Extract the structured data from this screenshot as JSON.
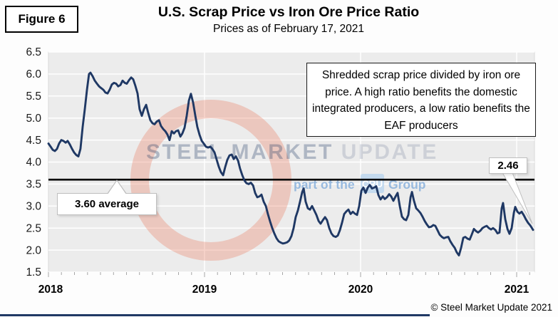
{
  "figure_label": "Figure 6",
  "title": "U.S. Scrap Price vs Iron Ore Price Ratio",
  "subtitle": "Prices as of February 17, 2021",
  "annotation": "Shredded scrap price divided by iron ore price. A high ratio benefits the domestic integrated producers, a low ratio benefits the EAF producers",
  "callouts": {
    "average_label": "3.60 average",
    "latest_label": "2.46"
  },
  "watermark": {
    "title_strong": "STEEL MARKET ",
    "title_light": "UPDATE",
    "tagline_prefix": "part of the",
    "tagline_box": "CRU",
    "tagline_suffix": "Group"
  },
  "copyright": "© Steel Market Update 2021",
  "colors": {
    "series": "#1f3864",
    "average_line": "#000000",
    "plot_bg": "#ececec",
    "plot_border": "#d9d9d9",
    "gridline": "#ffffff",
    "tick": "#a6a6a6",
    "axis_text": "#1a1a1a",
    "watermark_ring": "rgba(235,124,96,0.33)",
    "watermark_navy_strong": "rgba(31,56,100,0.30)",
    "watermark_navy_light": "rgba(31,56,100,0.15)",
    "watermark_blue": "rgba(130,173,219,0.80)",
    "watermark_box": "rgba(189,215,238,0.85)",
    "bottom_bar": "#1f3864",
    "callout_border": "#bfbfbf"
  },
  "chart_data": {
    "type": "line",
    "title": "U.S. Scrap Price vs Iron Ore Price Ratio",
    "subtitle": "Prices as of February 17, 2021",
    "xlabel": "",
    "ylabel": "",
    "x_ticks": [
      2018,
      2019,
      2020,
      2021
    ],
    "x_tick_labels": [
      "2018",
      "2019",
      "2020",
      "2021"
    ],
    "y_ticks": [
      6.5,
      6.0,
      5.5,
      5.0,
      4.5,
      4.0,
      3.5,
      3.0,
      2.5,
      2.0,
      1.5
    ],
    "ylim": [
      1.5,
      6.5
    ],
    "xlim": [
      2018.0,
      2021.115
    ],
    "grid": true,
    "legend": "none",
    "average": 3.6,
    "latest_value": 2.46,
    "series": [
      {
        "name": "Shredded scrap price / iron ore price ratio",
        "points": [
          [
            2018.0,
            4.42
          ],
          [
            2018.014,
            4.35
          ],
          [
            2018.027,
            4.28
          ],
          [
            2018.041,
            4.25
          ],
          [
            2018.055,
            4.3
          ],
          [
            2018.068,
            4.42
          ],
          [
            2018.082,
            4.5
          ],
          [
            2018.096,
            4.48
          ],
          [
            2018.11,
            4.44
          ],
          [
            2018.123,
            4.48
          ],
          [
            2018.137,
            4.4
          ],
          [
            2018.151,
            4.3
          ],
          [
            2018.164,
            4.22
          ],
          [
            2018.178,
            4.16
          ],
          [
            2018.192,
            4.13
          ],
          [
            2018.205,
            4.3
          ],
          [
            2018.219,
            4.8
          ],
          [
            2018.233,
            5.2
          ],
          [
            2018.247,
            5.65
          ],
          [
            2018.26,
            6.0
          ],
          [
            2018.269,
            6.03
          ],
          [
            2018.283,
            5.95
          ],
          [
            2018.297,
            5.85
          ],
          [
            2018.311,
            5.78
          ],
          [
            2018.324,
            5.72
          ],
          [
            2018.338,
            5.68
          ],
          [
            2018.352,
            5.64
          ],
          [
            2018.365,
            5.58
          ],
          [
            2018.379,
            5.56
          ],
          [
            2018.393,
            5.65
          ],
          [
            2018.406,
            5.76
          ],
          [
            2018.42,
            5.8
          ],
          [
            2018.434,
            5.78
          ],
          [
            2018.447,
            5.72
          ],
          [
            2018.461,
            5.75
          ],
          [
            2018.475,
            5.85
          ],
          [
            2018.489,
            5.8
          ],
          [
            2018.502,
            5.78
          ],
          [
            2018.516,
            5.86
          ],
          [
            2018.53,
            5.92
          ],
          [
            2018.543,
            5.88
          ],
          [
            2018.557,
            5.73
          ],
          [
            2018.571,
            5.56
          ],
          [
            2018.584,
            5.2
          ],
          [
            2018.598,
            5.05
          ],
          [
            2018.612,
            5.2
          ],
          [
            2018.626,
            5.3
          ],
          [
            2018.639,
            5.12
          ],
          [
            2018.653,
            4.95
          ],
          [
            2018.667,
            4.88
          ],
          [
            2018.68,
            4.86
          ],
          [
            2018.694,
            4.92
          ],
          [
            2018.708,
            4.95
          ],
          [
            2018.721,
            4.82
          ],
          [
            2018.735,
            4.75
          ],
          [
            2018.749,
            4.7
          ],
          [
            2018.763,
            4.62
          ],
          [
            2018.776,
            4.5
          ],
          [
            2018.79,
            4.7
          ],
          [
            2018.804,
            4.65
          ],
          [
            2018.817,
            4.7
          ],
          [
            2018.831,
            4.72
          ],
          [
            2018.845,
            4.58
          ],
          [
            2018.858,
            4.65
          ],
          [
            2018.872,
            4.78
          ],
          [
            2018.886,
            5.05
          ],
          [
            2018.9,
            5.4
          ],
          [
            2018.913,
            5.55
          ],
          [
            2018.927,
            5.35
          ],
          [
            2018.941,
            5.05
          ],
          [
            2018.954,
            4.8
          ],
          [
            2018.968,
            4.62
          ],
          [
            2018.982,
            4.48
          ],
          [
            2018.995,
            4.42
          ],
          [
            2019.009,
            4.35
          ],
          [
            2019.023,
            4.33
          ],
          [
            2019.037,
            4.35
          ],
          [
            2019.05,
            4.3
          ],
          [
            2019.064,
            4.22
          ],
          [
            2019.078,
            4.05
          ],
          [
            2019.091,
            3.9
          ],
          [
            2019.105,
            3.77
          ],
          [
            2019.119,
            3.7
          ],
          [
            2019.132,
            3.88
          ],
          [
            2019.146,
            4.05
          ],
          [
            2019.16,
            4.15
          ],
          [
            2019.174,
            4.17
          ],
          [
            2019.187,
            4.07
          ],
          [
            2019.201,
            4.13
          ],
          [
            2019.215,
            4.03
          ],
          [
            2019.228,
            3.85
          ],
          [
            2019.242,
            3.7
          ],
          [
            2019.256,
            3.58
          ],
          [
            2019.269,
            3.52
          ],
          [
            2019.283,
            3.5
          ],
          [
            2019.297,
            3.53
          ],
          [
            2019.311,
            3.47
          ],
          [
            2019.324,
            3.3
          ],
          [
            2019.338,
            3.2
          ],
          [
            2019.352,
            3.22
          ],
          [
            2019.365,
            3.26
          ],
          [
            2019.379,
            3.1
          ],
          [
            2019.393,
            3.0
          ],
          [
            2019.406,
            2.82
          ],
          [
            2019.42,
            2.65
          ],
          [
            2019.434,
            2.5
          ],
          [
            2019.447,
            2.38
          ],
          [
            2019.461,
            2.27
          ],
          [
            2019.475,
            2.2
          ],
          [
            2019.489,
            2.17
          ],
          [
            2019.502,
            2.15
          ],
          [
            2019.516,
            2.16
          ],
          [
            2019.53,
            2.18
          ],
          [
            2019.543,
            2.22
          ],
          [
            2019.557,
            2.32
          ],
          [
            2019.571,
            2.5
          ],
          [
            2019.584,
            2.75
          ],
          [
            2019.598,
            2.9
          ],
          [
            2019.612,
            3.1
          ],
          [
            2019.626,
            3.32
          ],
          [
            2019.635,
            3.4
          ],
          [
            2019.648,
            3.1
          ],
          [
            2019.662,
            2.95
          ],
          [
            2019.676,
            2.92
          ],
          [
            2019.689,
            3.0
          ],
          [
            2019.703,
            2.9
          ],
          [
            2019.717,
            2.8
          ],
          [
            2019.731,
            2.66
          ],
          [
            2019.744,
            2.6
          ],
          [
            2019.758,
            2.68
          ],
          [
            2019.772,
            2.75
          ],
          [
            2019.785,
            2.68
          ],
          [
            2019.799,
            2.5
          ],
          [
            2019.813,
            2.38
          ],
          [
            2019.826,
            2.32
          ],
          [
            2019.84,
            2.3
          ],
          [
            2019.854,
            2.33
          ],
          [
            2019.867,
            2.45
          ],
          [
            2019.881,
            2.62
          ],
          [
            2019.895,
            2.82
          ],
          [
            2019.909,
            2.88
          ],
          [
            2019.922,
            2.92
          ],
          [
            2019.936,
            2.82
          ],
          [
            2019.95,
            2.87
          ],
          [
            2019.963,
            2.83
          ],
          [
            2019.977,
            2.8
          ],
          [
            2019.991,
            3.0
          ],
          [
            2020.005,
            3.35
          ],
          [
            2020.018,
            3.42
          ],
          [
            2020.032,
            3.3
          ],
          [
            2020.046,
            3.42
          ],
          [
            2020.059,
            3.48
          ],
          [
            2020.073,
            3.4
          ],
          [
            2020.087,
            3.42
          ],
          [
            2020.1,
            3.45
          ],
          [
            2020.114,
            3.25
          ],
          [
            2020.128,
            3.15
          ],
          [
            2020.142,
            3.22
          ],
          [
            2020.155,
            3.16
          ],
          [
            2020.169,
            3.2
          ],
          [
            2020.183,
            3.27
          ],
          [
            2020.196,
            3.22
          ],
          [
            2020.21,
            3.12
          ],
          [
            2020.224,
            3.22
          ],
          [
            2020.237,
            3.3
          ],
          [
            2020.251,
            3.0
          ],
          [
            2020.265,
            2.76
          ],
          [
            2020.279,
            2.7
          ],
          [
            2020.292,
            2.68
          ],
          [
            2020.306,
            2.8
          ],
          [
            2020.32,
            3.2
          ],
          [
            2020.329,
            3.32
          ],
          [
            2020.342,
            3.12
          ],
          [
            2020.356,
            2.95
          ],
          [
            2020.37,
            2.9
          ],
          [
            2020.384,
            2.84
          ],
          [
            2020.397,
            2.76
          ],
          [
            2020.411,
            2.66
          ],
          [
            2020.425,
            2.58
          ],
          [
            2020.438,
            2.52
          ],
          [
            2020.452,
            2.53
          ],
          [
            2020.466,
            2.57
          ],
          [
            2020.479,
            2.55
          ],
          [
            2020.493,
            2.45
          ],
          [
            2020.507,
            2.35
          ],
          [
            2020.521,
            2.3
          ],
          [
            2020.534,
            2.27
          ],
          [
            2020.548,
            2.29
          ],
          [
            2020.562,
            2.3
          ],
          [
            2020.575,
            2.2
          ],
          [
            2020.589,
            2.12
          ],
          [
            2020.603,
            2.05
          ],
          [
            2020.616,
            1.95
          ],
          [
            2020.63,
            1.88
          ],
          [
            2020.644,
            2.05
          ],
          [
            2020.658,
            2.28
          ],
          [
            2020.671,
            2.3
          ],
          [
            2020.685,
            2.26
          ],
          [
            2020.699,
            2.24
          ],
          [
            2020.712,
            2.35
          ],
          [
            2020.726,
            2.48
          ],
          [
            2020.74,
            2.43
          ],
          [
            2020.753,
            2.4
          ],
          [
            2020.767,
            2.44
          ],
          [
            2020.781,
            2.5
          ],
          [
            2020.795,
            2.53
          ],
          [
            2020.808,
            2.55
          ],
          [
            2020.822,
            2.5
          ],
          [
            2020.836,
            2.47
          ],
          [
            2020.849,
            2.5
          ],
          [
            2020.863,
            2.46
          ],
          [
            2020.877,
            2.38
          ],
          [
            2020.89,
            2.4
          ],
          [
            2020.904,
            2.95
          ],
          [
            2020.913,
            3.07
          ],
          [
            2020.927,
            2.7
          ],
          [
            2020.941,
            2.48
          ],
          [
            2020.954,
            2.37
          ],
          [
            2020.968,
            2.5
          ],
          [
            2020.982,
            2.85
          ],
          [
            2020.991,
            2.98
          ],
          [
            2021.005,
            2.87
          ],
          [
            2021.018,
            2.83
          ],
          [
            2021.032,
            2.87
          ],
          [
            2021.046,
            2.79
          ],
          [
            2021.059,
            2.7
          ],
          [
            2021.073,
            2.62
          ],
          [
            2021.087,
            2.56
          ],
          [
            2021.105,
            2.46
          ]
        ]
      }
    ]
  }
}
